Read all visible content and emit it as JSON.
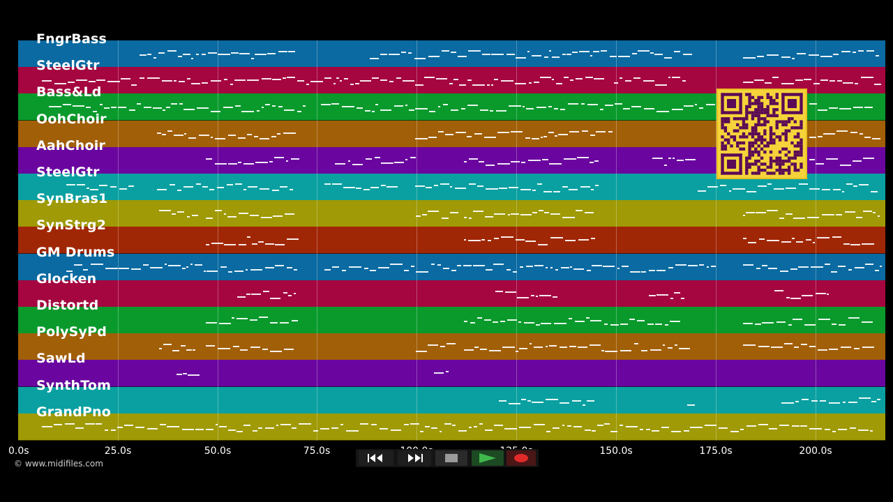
{
  "tracks": [
    {
      "name": "FngrBass",
      "color": "#0a6aa1"
    },
    {
      "name": "SteelGtr",
      "color": "#a5063f"
    },
    {
      "name": "Bass&Ld",
      "color": "#0a9a2c"
    },
    {
      "name": "OohChoir",
      "color": "#a15f08"
    },
    {
      "name": "AahChoir",
      "color": "#6a069f"
    },
    {
      "name": "SteelGtr",
      "color": "#0aa0a1"
    },
    {
      "name": "SynBras1",
      "color": "#9f9a05"
    },
    {
      "name": "SynStrg2",
      "color": "#a02706"
    },
    {
      "name": "GM Drums",
      "color": "#0a6aa1"
    },
    {
      "name": "Glocken",
      "color": "#a5063f"
    },
    {
      "name": "Distortd",
      "color": "#0a9a2c"
    },
    {
      "name": "PolySyPd",
      "color": "#a15f08"
    },
    {
      "name": "SawLd",
      "color": "#6a069f"
    },
    {
      "name": "SynthTom",
      "color": "#0aa0a1"
    },
    {
      "name": "GrandPno",
      "color": "#9f9a05"
    }
  ],
  "timeline": {
    "ticks": [
      "0.0s",
      "25.0s",
      "50.0s",
      "75.0s",
      "100.0s",
      "125.0s",
      "150.0s",
      "175.0s",
      "200.0s"
    ]
  },
  "copyright": "© www.midifiles.com",
  "transport": {
    "rewind_icon": "rewind-icon",
    "forward_icon": "fast-forward-icon",
    "stop_icon": "stop-icon",
    "play_icon": "play-icon",
    "record_icon": "record-icon"
  }
}
